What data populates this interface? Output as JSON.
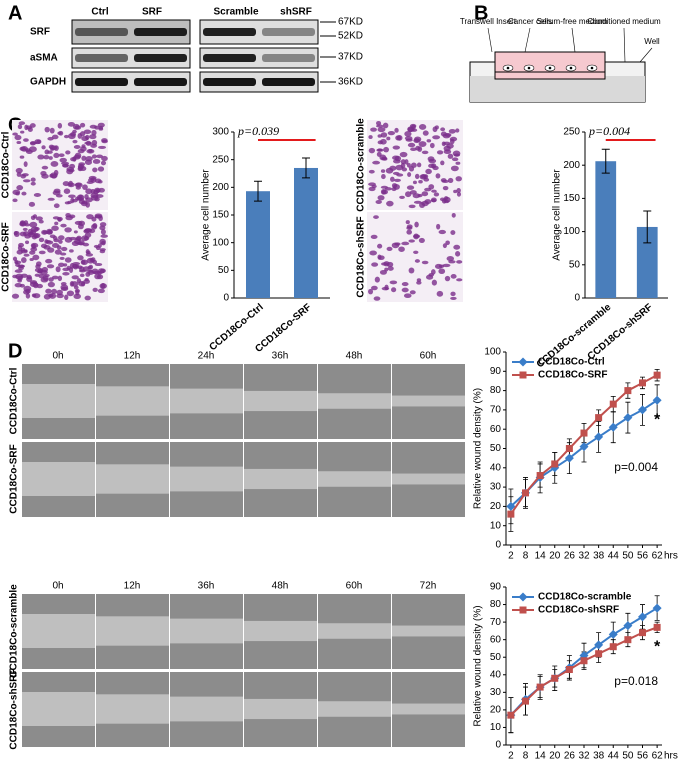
{
  "figure": {
    "panel_labels": [
      "A",
      "B",
      "C",
      "D"
    ],
    "blot": {
      "columns": [
        "Ctrl",
        "SRF",
        "Scramble",
        "shSRF"
      ],
      "rows": [
        "SRF",
        "aSMA",
        "GAPDH"
      ],
      "sizes": [
        "67KD",
        "52KD",
        "37KD",
        "36KD"
      ]
    },
    "diagram": {
      "labels": [
        "Transwell Insert",
        "Cancer cells",
        "Serum-free medium",
        "Conditioned medium",
        "Well"
      ]
    },
    "invasion_images": {
      "row_labels": [
        "CCD18Co-Ctrl",
        "CCD18Co-SRF",
        "CCD18Co-scramble",
        "CCD18Co-shSRF"
      ]
    },
    "wound_images": {
      "top_times": [
        "0h",
        "12h",
        "24h",
        "36h",
        "48h",
        "60h"
      ],
      "top_rows": [
        "CCD18Co-Ctrl",
        "CCD18Co-SRF"
      ],
      "bottom_times": [
        "0h",
        "12h",
        "36h",
        "48h",
        "60h",
        "72h"
      ],
      "bottom_rows": [
        "CCD18Co-scramble",
        "CCD18Co-shSRF"
      ]
    }
  },
  "chart_data": [
    {
      "type": "bar",
      "ylabel": "Average cell number",
      "categories": [
        "CCD18Co-Ctrl",
        "CCD18Co-SRF"
      ],
      "values": [
        193,
        235
      ],
      "errors": [
        18,
        18
      ],
      "color": "#4a7ebb",
      "ylim": [
        0,
        300
      ],
      "yticks": [
        0,
        50,
        100,
        150,
        200,
        250,
        300
      ],
      "annotation": "p=0.039",
      "annotation_color": "#e31a1c"
    },
    {
      "type": "bar",
      "ylabel": "Average cell number",
      "categories": [
        "CCD18Co-scramble",
        "CCD18Co-shSRF"
      ],
      "values": [
        206,
        107
      ],
      "errors": [
        18,
        24
      ],
      "color": "#4a7ebb",
      "ylim": [
        0,
        250
      ],
      "yticks": [
        0,
        50,
        100,
        150,
        200,
        250
      ],
      "annotation": "p=0.004",
      "annotation_color": "#e31a1c"
    },
    {
      "type": "line",
      "ylabel": "Relative wound density (%)",
      "xlabel": "hrs",
      "x": [
        2,
        8,
        14,
        20,
        26,
        32,
        38,
        44,
        50,
        56,
        62
      ],
      "xlim": [
        0,
        64
      ],
      "xticks": [
        2,
        8,
        14,
        20,
        26,
        32,
        38,
        44,
        50,
        56,
        62
      ],
      "ylim": [
        0,
        100
      ],
      "yticks": [
        0,
        10,
        20,
        30,
        40,
        50,
        60,
        70,
        80,
        90,
        100
      ],
      "legend": "upper left",
      "annotation": "p=0.004",
      "marker": "*",
      "series": [
        {
          "name": "CCD18Co-Ctrl",
          "color": "#3a7dc9",
          "shape": "diamond",
          "values": [
            20,
            27,
            35,
            40,
            45,
            51,
            56,
            61,
            66,
            70,
            75
          ],
          "errors": [
            9,
            8,
            8,
            8,
            8,
            8,
            8,
            8,
            8,
            8,
            8
          ]
        },
        {
          "name": "CCD18Co-SRF",
          "color": "#c0504d",
          "shape": "square",
          "values": [
            16,
            27,
            36,
            42,
            50,
            58,
            66,
            73,
            80,
            84,
            88
          ],
          "errors": [
            9,
            7,
            6,
            6,
            5,
            5,
            4,
            4,
            4,
            3,
            3
          ]
        }
      ]
    },
    {
      "type": "line",
      "ylabel": "Relative wound density (%)",
      "xlabel": "hrs",
      "x": [
        2,
        8,
        14,
        20,
        26,
        32,
        38,
        44,
        50,
        56,
        62
      ],
      "xlim": [
        0,
        64
      ],
      "xticks": [
        2,
        8,
        14,
        20,
        26,
        32,
        38,
        44,
        50,
        56,
        62
      ],
      "ylim": [
        0,
        90
      ],
      "yticks": [
        0,
        10,
        20,
        30,
        40,
        50,
        60,
        70,
        80,
        90
      ],
      "legend": "upper left",
      "annotation": "p=0.018",
      "marker": "*",
      "series": [
        {
          "name": "CCD18Co-scramble",
          "color": "#3a7dc9",
          "shape": "diamond",
          "values": [
            17,
            26,
            33,
            38,
            44,
            51,
            57,
            63,
            68,
            73,
            78
          ],
          "errors": [
            10,
            9,
            7,
            7,
            7,
            7,
            7,
            7,
            7,
            7,
            7
          ]
        },
        {
          "name": "CCD18Co-shSRF",
          "color": "#c0504d",
          "shape": "square",
          "values": [
            17,
            25,
            33,
            38,
            43,
            48,
            52,
            56,
            60,
            64,
            67
          ],
          "errors": [
            10,
            8,
            6,
            5,
            5,
            5,
            5,
            4,
            4,
            4,
            3
          ]
        }
      ]
    }
  ]
}
